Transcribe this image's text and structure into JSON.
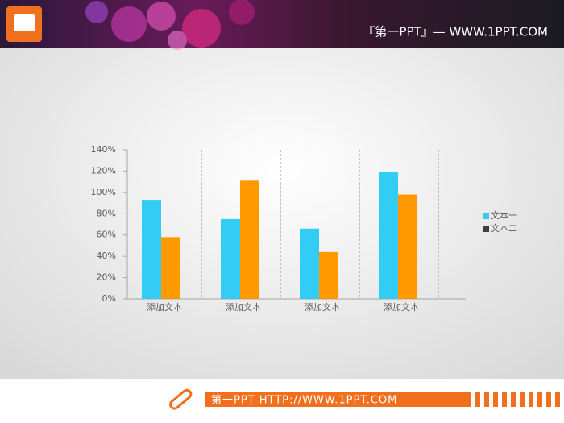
{
  "header": {
    "title": "『第一PPT』— WWW.1PPT.COM"
  },
  "footer": {
    "text": "第一PPT HTTP://WWW.1PPT.COM"
  },
  "chart_data": {
    "type": "bar",
    "categories": [
      "添加文本",
      "添加文本",
      "添加文本",
      "添加文本"
    ],
    "series": [
      {
        "name": "文本一",
        "color": "#33ccf5",
        "legend_color": "#33ccf5",
        "values": [
          93,
          75,
          66,
          119
        ]
      },
      {
        "name": "文本二",
        "color": "#ff9900",
        "legend_color": "#404040",
        "values": [
          58,
          111,
          44,
          98
        ]
      }
    ],
    "ylim": [
      0,
      140
    ],
    "yticks": [
      {
        "value": 0,
        "label": "0%"
      },
      {
        "value": 20,
        "label": "20%"
      },
      {
        "value": 40,
        "label": "40%"
      },
      {
        "value": 60,
        "label": "60%"
      },
      {
        "value": 80,
        "label": "80%"
      },
      {
        "value": 100,
        "label": "100%"
      },
      {
        "value": 120,
        "label": "120%"
      },
      {
        "value": 140,
        "label": "140%"
      }
    ],
    "legend": "right",
    "separators": true
  }
}
